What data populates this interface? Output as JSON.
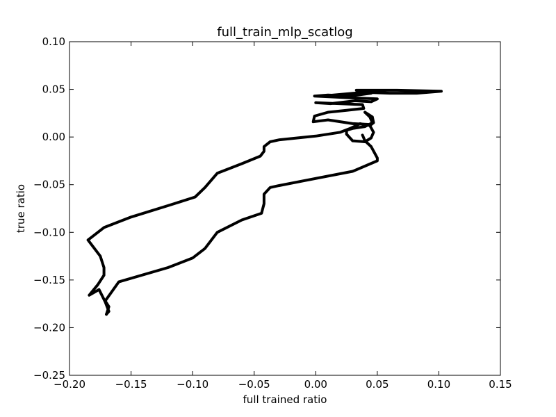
{
  "chart_data": {
    "type": "line",
    "title": "full_train_mlp_scatlog",
    "xlabel": "full trained ratio",
    "ylabel": "true ratio",
    "xlim": [
      -0.2,
      0.15
    ],
    "ylim": [
      -0.25,
      0.1
    ],
    "xticks": [
      "−0.20",
      "−0.15",
      "−0.10",
      "−0.05",
      "0.00",
      "0.05",
      "0.10",
      "0.15"
    ],
    "yticks": [
      "0.10",
      "0.05",
      "0.00",
      "−0.05",
      "−0.10",
      "−0.15",
      "−0.20",
      "−0.25"
    ],
    "grid": false,
    "line_color": "#000000",
    "series": [
      {
        "x": [
          -0.17,
          -0.168,
          -0.171,
          -0.176,
          -0.184,
          -0.177,
          -0.172,
          -0.172,
          -0.175,
          -0.185,
          -0.172,
          -0.15,
          -0.12,
          -0.098,
          -0.09,
          -0.08,
          -0.06,
          -0.045,
          -0.042,
          -0.042,
          -0.037,
          -0.03,
          0.0,
          0.02,
          0.028,
          0.036,
          0.044,
          0.047,
          0.045,
          0.04,
          0.03,
          0.025,
          0.025,
          0.03,
          0.04,
          0.046,
          0.044,
          0.04
        ],
        "y": [
          -0.186,
          -0.183,
          -0.173,
          -0.16,
          -0.166,
          -0.155,
          -0.145,
          -0.137,
          -0.125,
          -0.108,
          -0.095,
          -0.084,
          -0.072,
          -0.063,
          -0.053,
          -0.038,
          -0.028,
          -0.02,
          -0.015,
          -0.01,
          -0.005,
          -0.003,
          0.001,
          0.005,
          0.009,
          0.014,
          0.012,
          0.005,
          -0.001,
          -0.005,
          -0.004,
          0.003,
          0.007,
          0.009,
          0.011,
          0.015,
          0.021,
          0.026
        ]
      },
      {
        "x": [
          -0.17,
          -0.168,
          -0.171,
          -0.16,
          -0.12,
          -0.1,
          -0.09,
          -0.08,
          -0.06,
          -0.044,
          -0.042,
          -0.042,
          -0.037,
          -0.03,
          -0.01,
          0.03,
          0.05,
          0.05,
          0.045,
          0.04,
          0.038
        ],
        "y": [
          -0.186,
          -0.178,
          -0.172,
          -0.152,
          -0.137,
          -0.127,
          -0.117,
          -0.1,
          -0.087,
          -0.08,
          -0.07,
          -0.06,
          -0.053,
          -0.051,
          -0.046,
          -0.036,
          -0.025,
          -0.022,
          -0.01,
          -0.004,
          0.002
        ]
      },
      {
        "x": [
          0.04,
          0.046,
          0.047,
          0.045,
          0.03,
          0.01,
          -0.002,
          -0.001,
          0.01,
          0.025,
          0.039,
          0.038,
          0.0,
          0.012,
          0.032,
          0.045,
          0.05,
          0.03,
          -0.001,
          0.01,
          0.028,
          0.045,
          0.04,
          0.005,
          0.04,
          0.06,
          0.082,
          0.102,
          0.066,
          0.033
        ],
        "y": [
          0.026,
          0.021,
          0.015,
          0.013,
          0.014,
          0.018,
          0.016,
          0.022,
          0.026,
          0.028,
          0.03,
          0.034,
          0.036,
          0.035,
          0.038,
          0.037,
          0.04,
          0.041,
          0.043,
          0.044,
          0.043,
          0.046,
          0.047,
          0.043,
          0.047,
          0.046,
          0.046,
          0.048,
          0.049,
          0.049
        ]
      }
    ]
  }
}
